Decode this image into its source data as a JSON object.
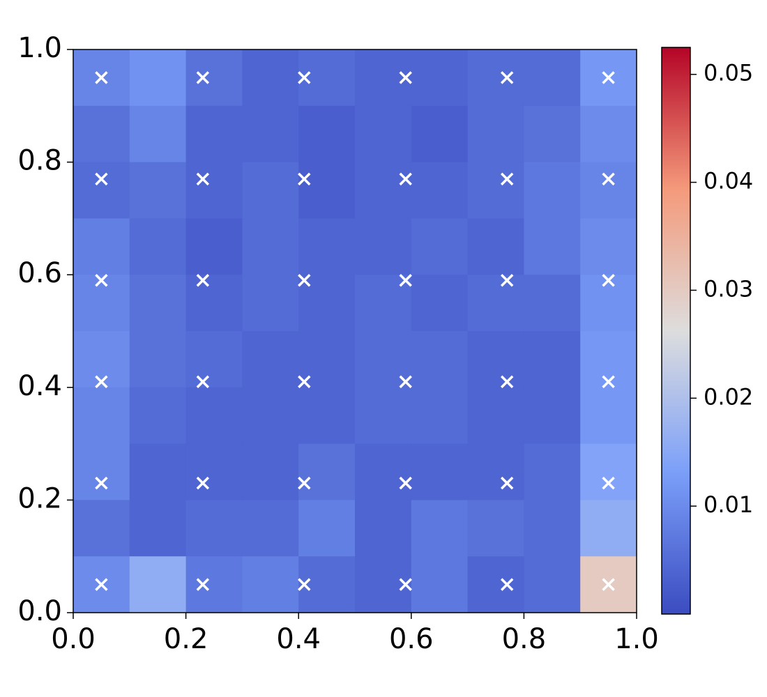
{
  "chart_data": {
    "type": "heatmap",
    "colormap": "coolwarm",
    "xlim": [
      0,
      1
    ],
    "ylim": [
      0,
      1
    ],
    "xticks": [
      {
        "value": 0,
        "label": "0.0"
      },
      0.2,
      0.4,
      0.6,
      0.8,
      {
        "value": 1,
        "label": "1.0"
      }
    ],
    "yticks": [
      {
        "value": 0,
        "label": "0.0"
      },
      0.2,
      0.4,
      0.6,
      0.8,
      {
        "value": 1,
        "label": "1.0"
      }
    ],
    "z": [
      [
        0.009,
        0.011,
        0.006,
        0.004,
        0.005,
        0.004,
        0.004,
        0.005,
        0.005,
        0.012
      ],
      [
        0.006,
        0.009,
        0.004,
        0.004,
        0.003,
        0.004,
        0.003,
        0.005,
        0.006,
        0.01
      ],
      [
        0.005,
        0.006,
        0.004,
        0.005,
        0.003,
        0.004,
        0.004,
        0.005,
        0.007,
        0.009
      ],
      [
        0.008,
        0.005,
        0.003,
        0.005,
        0.004,
        0.004,
        0.005,
        0.004,
        0.007,
        0.01
      ],
      [
        0.009,
        0.006,
        0.004,
        0.005,
        0.004,
        0.005,
        0.004,
        0.005,
        0.005,
        0.011
      ],
      [
        0.01,
        0.006,
        0.005,
        0.004,
        0.004,
        0.005,
        0.005,
        0.004,
        0.004,
        0.012
      ],
      [
        0.009,
        0.005,
        0.004,
        0.004,
        0.004,
        0.005,
        0.005,
        0.004,
        0.004,
        0.012
      ],
      [
        0.009,
        0.004,
        0.004,
        0.004,
        0.006,
        0.004,
        0.004,
        0.004,
        0.005,
        0.014
      ],
      [
        0.006,
        0.004,
        0.005,
        0.005,
        0.008,
        0.004,
        0.007,
        0.006,
        0.005,
        0.016
      ],
      [
        0.01,
        0.016,
        0.007,
        0.008,
        0.005,
        0.004,
        0.007,
        0.004,
        0.005,
        0.03
      ]
    ],
    "clim": [
      0,
      0.0525
    ],
    "cticks": [
      0.01,
      0.02,
      0.03,
      0.04,
      0.05
    ],
    "points": {
      "color": "#ffffff",
      "x": [
        0.05,
        0.23,
        0.41,
        0.59,
        0.77,
        0.95,
        0.05,
        0.23,
        0.41,
        0.59,
        0.77,
        0.95,
        0.05,
        0.23,
        0.41,
        0.59,
        0.77,
        0.95,
        0.05,
        0.23,
        0.41,
        0.59,
        0.77,
        0.95,
        0.05,
        0.23,
        0.41,
        0.59,
        0.77,
        0.95,
        0.05,
        0.23,
        0.41,
        0.59,
        0.77,
        0.95
      ],
      "y": [
        0.95,
        0.95,
        0.95,
        0.95,
        0.95,
        0.95,
        0.77,
        0.77,
        0.77,
        0.77,
        0.77,
        0.77,
        0.59,
        0.59,
        0.59,
        0.59,
        0.59,
        0.59,
        0.41,
        0.41,
        0.41,
        0.41,
        0.41,
        0.41,
        0.23,
        0.23,
        0.23,
        0.23,
        0.23,
        0.23,
        0.05,
        0.05,
        0.05,
        0.05,
        0.05,
        0.05
      ]
    }
  }
}
